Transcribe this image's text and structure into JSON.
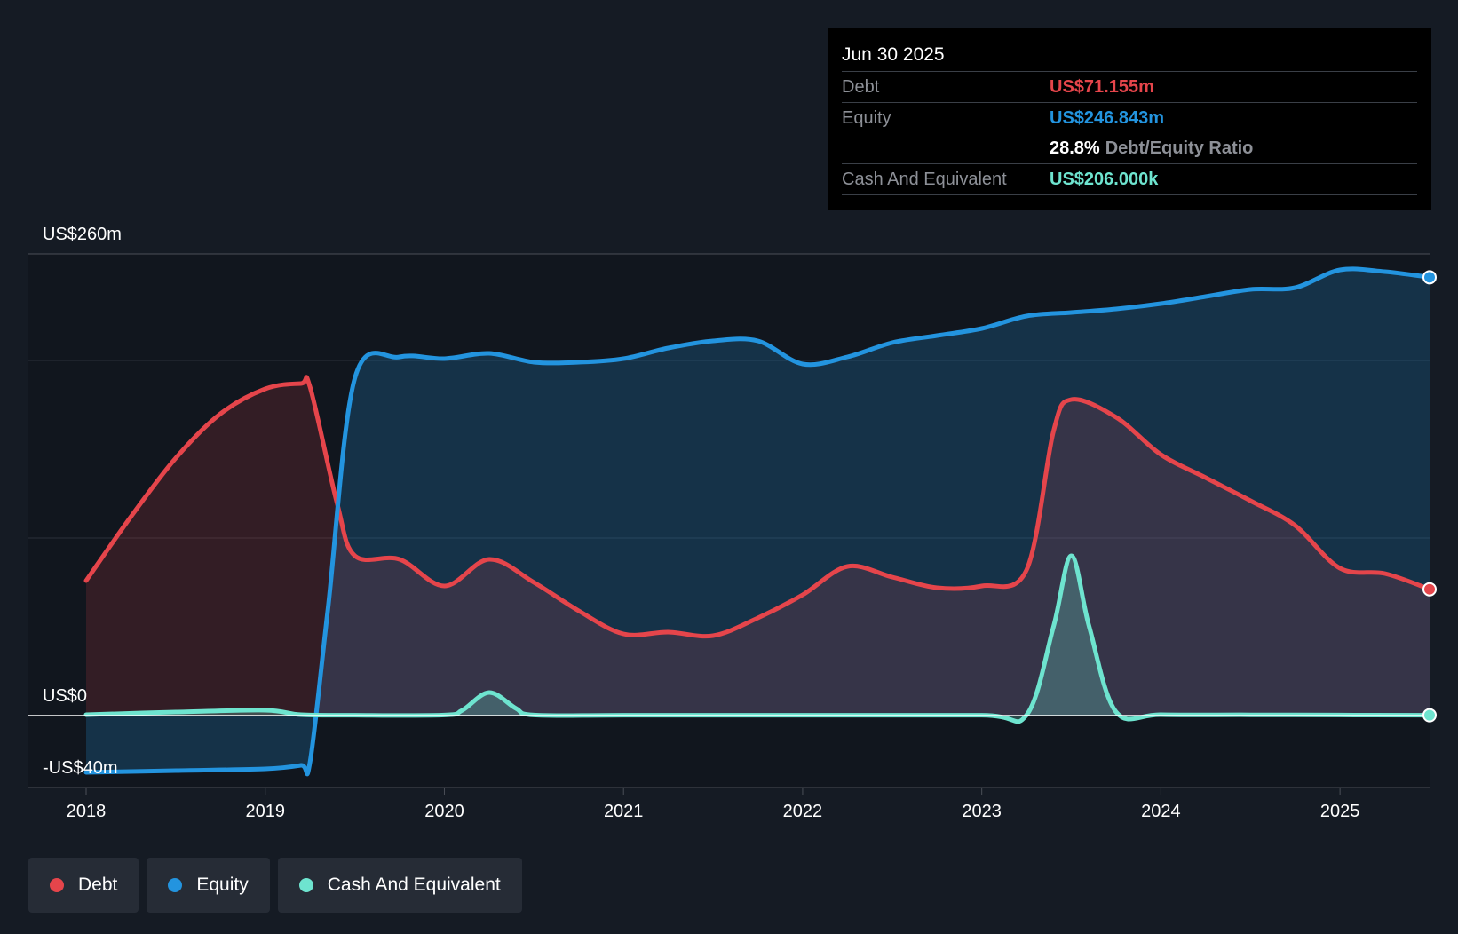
{
  "tooltip": {
    "date": "Jun 30 2025",
    "debt_label": "Debt",
    "debt_value": "US$71.155m",
    "equity_label": "Equity",
    "equity_value": "US$246.843m",
    "ratio_value": "28.8%",
    "ratio_label": "Debt/Equity Ratio",
    "cash_label": "Cash And Equivalent",
    "cash_value": "US$206.000k"
  },
  "legend": {
    "debt": "Debt",
    "equity": "Equity",
    "cash": "Cash And Equivalent"
  },
  "colors": {
    "debt": "#e5454b",
    "equity": "#2394df",
    "cash": "#6ee4cf",
    "background": "#151b24"
  },
  "chart_data": {
    "type": "area",
    "title": "",
    "xlabel": "",
    "ylabel": "",
    "ylim": [
      -40,
      260
    ],
    "xlim": [
      2018.0,
      2025.5
    ],
    "y_tick_labels": [
      {
        "value": 260,
        "label": "US$260m"
      },
      {
        "value": 0,
        "label": "US$0"
      },
      {
        "value": -40,
        "label": "-US$40m"
      }
    ],
    "x_ticks": [
      2018,
      2019,
      2020,
      2021,
      2022,
      2023,
      2024,
      2025
    ],
    "x_tick_labels": [
      "2018",
      "2019",
      "2020",
      "2021",
      "2022",
      "2023",
      "2024",
      "2025"
    ],
    "series": [
      {
        "name": "Debt",
        "x": [
          2018.0,
          2018.25,
          2018.5,
          2018.75,
          2019.0,
          2019.2,
          2019.25,
          2019.4,
          2019.5,
          2019.75,
          2020.0,
          2020.25,
          2020.5,
          2020.75,
          2021.0,
          2021.25,
          2021.5,
          2021.75,
          2022.0,
          2022.25,
          2022.5,
          2022.75,
          2023.0,
          2023.25,
          2023.4,
          2023.5,
          2023.75,
          2024.0,
          2024.25,
          2024.5,
          2024.75,
          2025.0,
          2025.25,
          2025.5
        ],
        "values": [
          76,
          112,
          145,
          170,
          184,
          187,
          185,
          120,
          90,
          88,
          73,
          88,
          75,
          59,
          46,
          47,
          45,
          55,
          68,
          84,
          78,
          72,
          73,
          82,
          160,
          178,
          168,
          147,
          134,
          121,
          107,
          83,
          80,
          71.155
        ]
      },
      {
        "name": "Equity",
        "x": [
          2018.0,
          2018.5,
          2019.0,
          2019.2,
          2019.25,
          2019.35,
          2019.5,
          2019.75,
          2020.0,
          2020.25,
          2020.5,
          2020.75,
          2021.0,
          2021.25,
          2021.5,
          2021.75,
          2022.0,
          2022.25,
          2022.5,
          2022.75,
          2023.0,
          2023.25,
          2023.5,
          2023.75,
          2024.0,
          2024.25,
          2024.5,
          2024.75,
          2025.0,
          2025.25,
          2025.5
        ],
        "values": [
          -32,
          -31,
          -30,
          -28,
          -26,
          60,
          190,
          202,
          201,
          204,
          199,
          199,
          201,
          207,
          211,
          211,
          198,
          202,
          210,
          214,
          218,
          225,
          227,
          229,
          232,
          236,
          240,
          241,
          251,
          250,
          246.843
        ]
      },
      {
        "name": "Cash And Equivalent",
        "x": [
          2018.0,
          2018.5,
          2019.0,
          2019.2,
          2019.5,
          2020.0,
          2020.1,
          2020.25,
          2020.4,
          2020.5,
          2021.0,
          2022.0,
          2023.0,
          2023.25,
          2023.4,
          2023.5,
          2023.6,
          2023.75,
          2024.0,
          2024.5,
          2025.0,
          2025.5
        ],
        "values": [
          0.5,
          2,
          3,
          0.5,
          0.2,
          0.3,
          3,
          13,
          4,
          0.3,
          0.2,
          0.2,
          0.2,
          0.3,
          50,
          90,
          50,
          2,
          0.5,
          0.4,
          0.3,
          0.206
        ]
      }
    ]
  }
}
